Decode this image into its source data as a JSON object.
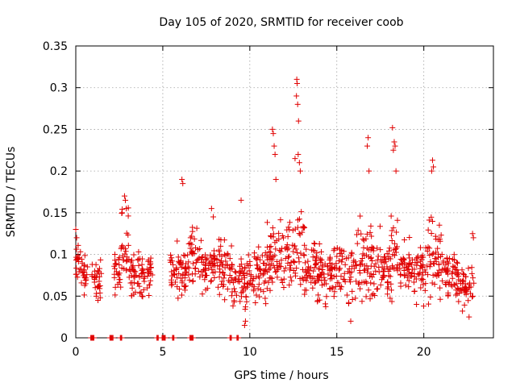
{
  "chart_data": {
    "type": "scatter",
    "title": "Day 105 of 2020, SRMTID for receiver coob",
    "xlabel": "GPS time / hours",
    "ylabel": "SRMTID / TECUs",
    "xlim": [
      0,
      24
    ],
    "ylim": [
      0,
      0.35
    ],
    "x_ticks": [
      0,
      5,
      10,
      15,
      20
    ],
    "x_tick_labels": [
      "0",
      "5",
      "10",
      "15",
      "20"
    ],
    "y_ticks": [
      0,
      0.05,
      0.1,
      0.15,
      0.2,
      0.25,
      0.3,
      0.35
    ],
    "y_tick_labels": [
      "0",
      "0.05",
      "0.1",
      "0.15",
      "0.2",
      "0.25",
      "0.3",
      "0.35"
    ],
    "grid": true,
    "marker": "+",
    "color": "#e00000",
    "segments": [
      {
        "x_start": 0.0,
        "x_end": 0.3,
        "base": 0.085,
        "spread": 0.025
      },
      {
        "x_start": 0.3,
        "x_end": 0.7,
        "base": 0.078,
        "spread": 0.025
      },
      {
        "x_start": 0.9,
        "x_end": 1.5,
        "base": 0.07,
        "spread": 0.02
      },
      {
        "x_start": 2.2,
        "x_end": 2.6,
        "base": 0.08,
        "spread": 0.025
      },
      {
        "x_start": 2.6,
        "x_end": 3.1,
        "base": 0.11,
        "spread": 0.04
      },
      {
        "x_start": 3.1,
        "x_end": 4.4,
        "base": 0.075,
        "spread": 0.025
      },
      {
        "x_start": 5.4,
        "x_end": 6.4,
        "base": 0.08,
        "spread": 0.025
      },
      {
        "x_start": 6.4,
        "x_end": 7.0,
        "base": 0.1,
        "spread": 0.03
      },
      {
        "x_start": 7.0,
        "x_end": 9.0,
        "base": 0.085,
        "spread": 0.03
      },
      {
        "x_start": 9.0,
        "x_end": 10.0,
        "base": 0.065,
        "spread": 0.03
      },
      {
        "x_start": 10.0,
        "x_end": 11.0,
        "base": 0.08,
        "spread": 0.03
      },
      {
        "x_start": 11.0,
        "x_end": 12.5,
        "base": 0.095,
        "spread": 0.04
      },
      {
        "x_start": 12.5,
        "x_end": 13.2,
        "base": 0.1,
        "spread": 0.05
      },
      {
        "x_start": 13.2,
        "x_end": 16.0,
        "base": 0.08,
        "spread": 0.035
      },
      {
        "x_start": 16.0,
        "x_end": 17.0,
        "base": 0.09,
        "spread": 0.04
      },
      {
        "x_start": 17.0,
        "x_end": 18.0,
        "base": 0.085,
        "spread": 0.035
      },
      {
        "x_start": 18.0,
        "x_end": 18.6,
        "base": 0.11,
        "spread": 0.05
      },
      {
        "x_start": 18.6,
        "x_end": 20.0,
        "base": 0.08,
        "spread": 0.035
      },
      {
        "x_start": 20.0,
        "x_end": 21.0,
        "base": 0.095,
        "spread": 0.045
      },
      {
        "x_start": 21.0,
        "x_end": 22.2,
        "base": 0.075,
        "spread": 0.03
      },
      {
        "x_start": 22.2,
        "x_end": 22.9,
        "base": 0.06,
        "spread": 0.025
      }
    ],
    "peaks": [
      {
        "x": 0.0,
        "y": 0.13
      },
      {
        "x": 0.05,
        "y": 0.12
      },
      {
        "x": 2.8,
        "y": 0.17
      },
      {
        "x": 2.9,
        "y": 0.155
      },
      {
        "x": 2.85,
        "y": 0.165
      },
      {
        "x": 6.1,
        "y": 0.19
      },
      {
        "x": 6.15,
        "y": 0.185
      },
      {
        "x": 7.8,
        "y": 0.155
      },
      {
        "x": 7.9,
        "y": 0.145
      },
      {
        "x": 9.5,
        "y": 0.165
      },
      {
        "x": 11.3,
        "y": 0.25
      },
      {
        "x": 11.35,
        "y": 0.245
      },
      {
        "x": 11.4,
        "y": 0.23
      },
      {
        "x": 11.45,
        "y": 0.22
      },
      {
        "x": 11.5,
        "y": 0.19
      },
      {
        "x": 12.7,
        "y": 0.31
      },
      {
        "x": 12.72,
        "y": 0.305
      },
      {
        "x": 12.68,
        "y": 0.29
      },
      {
        "x": 12.75,
        "y": 0.28
      },
      {
        "x": 12.8,
        "y": 0.26
      },
      {
        "x": 12.78,
        "y": 0.22
      },
      {
        "x": 12.85,
        "y": 0.21
      },
      {
        "x": 12.9,
        "y": 0.2
      },
      {
        "x": 12.6,
        "y": 0.215
      },
      {
        "x": 16.8,
        "y": 0.24
      },
      {
        "x": 16.75,
        "y": 0.23
      },
      {
        "x": 16.85,
        "y": 0.2
      },
      {
        "x": 18.2,
        "y": 0.252
      },
      {
        "x": 18.3,
        "y": 0.235
      },
      {
        "x": 18.35,
        "y": 0.23
      },
      {
        "x": 18.25,
        "y": 0.225
      },
      {
        "x": 18.4,
        "y": 0.2
      },
      {
        "x": 20.5,
        "y": 0.213
      },
      {
        "x": 20.55,
        "y": 0.205
      },
      {
        "x": 20.45,
        "y": 0.2
      },
      {
        "x": 22.8,
        "y": 0.125
      },
      {
        "x": 22.85,
        "y": 0.12
      }
    ],
    "lows": [
      {
        "x": 9.7,
        "y": 0.015
      },
      {
        "x": 9.75,
        "y": 0.02
      },
      {
        "x": 15.8,
        "y": 0.02
      },
      {
        "x": 22.6,
        "y": 0.025
      }
    ],
    "zero_points": [
      0.9,
      1.0,
      2.0,
      2.1,
      2.6,
      4.7,
      5.0,
      5.1,
      5.6,
      6.6,
      6.7,
      8.9,
      9.3
    ],
    "seed": 105
  }
}
